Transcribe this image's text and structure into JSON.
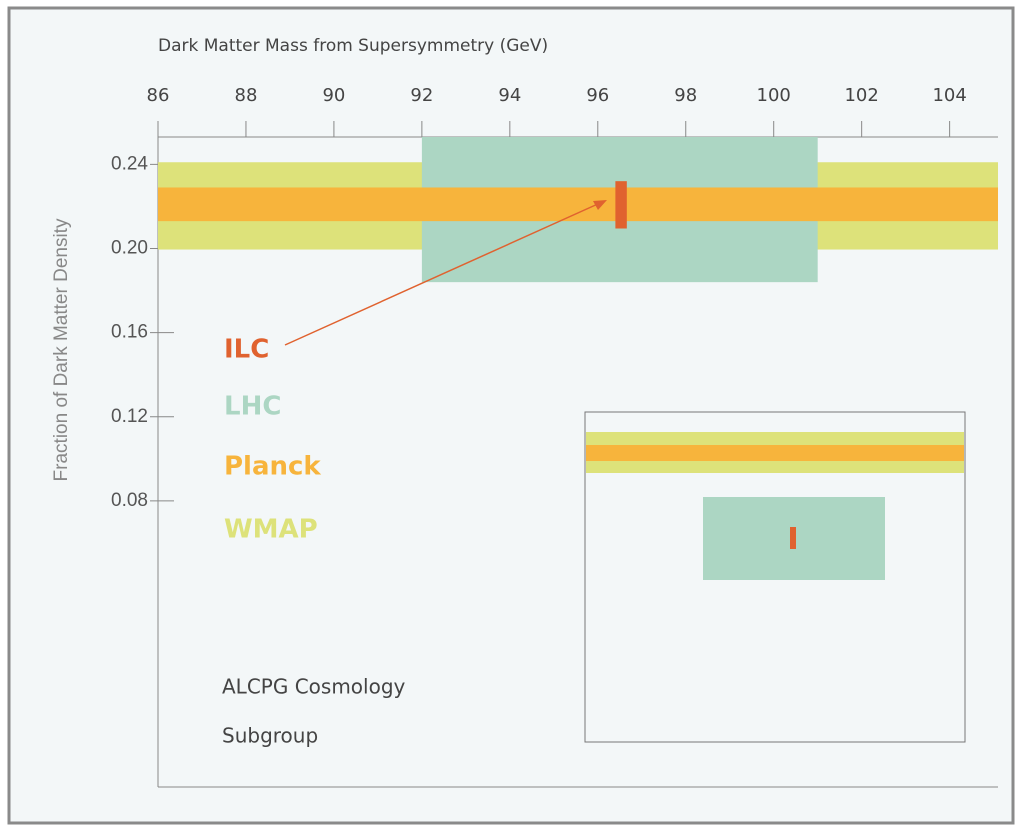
{
  "chart_data": {
    "type": "range",
    "x_label": "Dark Matter Mass from Supersymmetry (GeV)",
    "y_label": "Fraction of Dark Matter Density",
    "xlim": [
      86,
      105.1
    ],
    "xticks": [
      86,
      88,
      90,
      92,
      94,
      96,
      98,
      100,
      102,
      104
    ],
    "ylim": [
      -0.056,
      0.253
    ],
    "yticks": [
      {
        "value": 0.24,
        "label": "0.24"
      },
      {
        "value": 0.2,
        "label": "0.20"
      },
      {
        "value": 0.16,
        "label": "0.16"
      },
      {
        "value": 0.12,
        "label": "0.12"
      },
      {
        "value": 0.08,
        "label": "0.08"
      }
    ],
    "series": [
      {
        "name": "ILC",
        "color": "#e0622f",
        "x": [
          96.4,
          96.66
        ],
        "y": [
          0.2095,
          0.232
        ]
      },
      {
        "name": "LHC",
        "color": "#acd6c3",
        "x": [
          92,
          101
        ],
        "y": [
          0.184,
          0.253
        ]
      },
      {
        "name": "Planck",
        "color": "#f7b43c",
        "x": [
          86,
          105.1
        ],
        "y": [
          0.213,
          0.229
        ]
      },
      {
        "name": "WMAP",
        "color": "#dde27a",
        "x": [
          86,
          105.1
        ],
        "y": [
          0.1995,
          0.241
        ]
      }
    ],
    "annotations": [
      "ALCPG Cosmology",
      "Subgroup"
    ]
  }
}
